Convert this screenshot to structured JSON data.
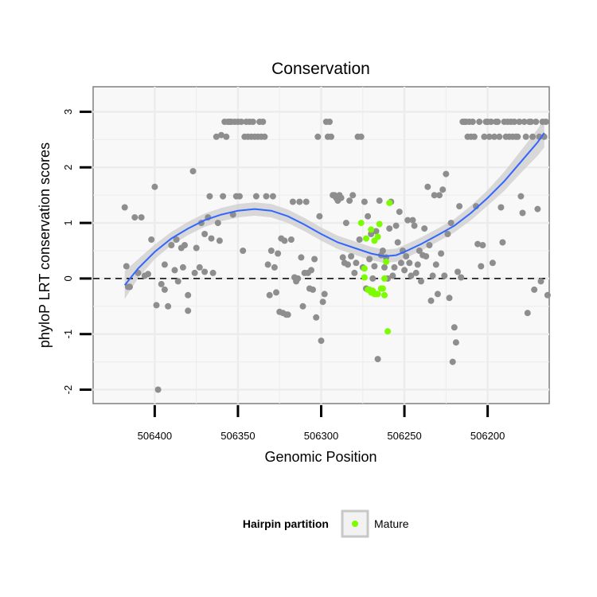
{
  "chart_data": {
    "type": "scatter",
    "title": "Conservation",
    "xlabel": "Genomic Position",
    "ylabel": "phyloP LRT conservation scores",
    "x_reversed": true,
    "xlim": [
      506437,
      506163
    ],
    "ylim": [
      -2.25,
      3.45
    ],
    "x_ticks": [
      506400,
      506350,
      506300,
      506250,
      506200
    ],
    "y_ticks": [
      -2,
      -1,
      0,
      1,
      2,
      3
    ],
    "grid": true,
    "reference_line": {
      "y": 0,
      "style": "dashed"
    },
    "legend": {
      "title": "Hairpin partition",
      "position": "bottom",
      "entries": [
        {
          "label": "Mature",
          "color": "#7cfc00"
        }
      ]
    },
    "colors": {
      "background": "#f8f8f8",
      "grid": "#ececec",
      "point": "#8e8e8e",
      "mature": "#7cfc00",
      "smooth": "#3366ff",
      "band": "#cfcfcf"
    },
    "series": [
      {
        "name": "",
        "color": "#8e8e8e",
        "points": [
          [
            506418,
            1.28
          ],
          [
            506417,
            0.22
          ],
          [
            506416,
            -0.15
          ],
          [
            506415,
            -0.15
          ],
          [
            506412,
            1.1
          ],
          [
            506410,
            0.1
          ],
          [
            506408,
            1.1
          ],
          [
            506406,
            0.05
          ],
          [
            506404,
            0.08
          ],
          [
            506402,
            0.7
          ],
          [
            506400,
            1.65
          ],
          [
            506399,
            -0.48
          ],
          [
            506398,
            -2.0
          ],
          [
            506396,
            -0.1
          ],
          [
            506394,
            0.25
          ],
          [
            506394,
            -0.2
          ],
          [
            506392,
            -0.5
          ],
          [
            506390,
            0.6
          ],
          [
            506388,
            0.15
          ],
          [
            506387,
            0.7
          ],
          [
            506386,
            -0.05
          ],
          [
            506384,
            0.55
          ],
          [
            506383,
            0.2
          ],
          [
            506382,
            0.6
          ],
          [
            506380,
            -0.58
          ],
          [
            506380,
            -0.3
          ],
          [
            506377,
            1.93
          ],
          [
            506376,
            0.1
          ],
          [
            506375,
            0.55
          ],
          [
            506373,
            0.2
          ],
          [
            506372,
            1.0
          ],
          [
            506370,
            0.8
          ],
          [
            506370,
            0.12
          ],
          [
            506368,
            1.1
          ],
          [
            506367,
            1.48
          ],
          [
            506366,
            0.72
          ],
          [
            506365,
            0.1
          ],
          [
            506363,
            2.55
          ],
          [
            506362,
            1.0
          ],
          [
            506361,
            0.68
          ],
          [
            506360,
            2.58
          ],
          [
            506359,
            1.48
          ],
          [
            506358,
            2.82
          ],
          [
            506357,
            2.55
          ],
          [
            506356,
            2.82
          ],
          [
            506355,
            2.82
          ],
          [
            506354,
            2.82
          ],
          [
            506353,
            1.15
          ],
          [
            506352,
            2.82
          ],
          [
            506351,
            1.48
          ],
          [
            506350,
            2.82
          ],
          [
            506349,
            1.48
          ],
          [
            506348,
            2.82
          ],
          [
            506347,
            0.5
          ],
          [
            506346,
            2.55
          ],
          [
            506345,
            2.82
          ],
          [
            506344,
            2.55
          ],
          [
            506343,
            2.82
          ],
          [
            506342,
            2.55
          ],
          [
            506341,
            2.82
          ],
          [
            506340,
            2.55
          ],
          [
            506339,
            1.48
          ],
          [
            506338,
            2.55
          ],
          [
            506337,
            2.82
          ],
          [
            506336,
            2.55
          ],
          [
            506335,
            2.82
          ],
          [
            506334,
            2.55
          ],
          [
            506333,
            1.48
          ],
          [
            506332,
            0.25
          ],
          [
            506331,
            -0.3
          ],
          [
            506330,
            0.5
          ],
          [
            506329,
            1.48
          ],
          [
            506328,
            0.2
          ],
          [
            506327,
            -0.25
          ],
          [
            506326,
            0.45
          ],
          [
            506325,
            -0.6
          ],
          [
            506324,
            0.72
          ],
          [
            506323,
            -0.62
          ],
          [
            506322,
            0.68
          ],
          [
            506321,
            -0.65
          ],
          [
            506320,
            -0.65
          ],
          [
            506318,
            0.7
          ],
          [
            506317,
            1.38
          ],
          [
            506316,
            0.02
          ],
          [
            506315,
            -0.05
          ],
          [
            506314,
            0.0
          ],
          [
            506313,
            1.38
          ],
          [
            506312,
            0.38
          ],
          [
            506311,
            -0.5
          ],
          [
            506310,
            0.1
          ],
          [
            506309,
            1.38
          ],
          [
            506308,
            0.1
          ],
          [
            506307,
            -0.18
          ],
          [
            506306,
            0.15
          ],
          [
            506305,
            -0.2
          ],
          [
            506304,
            0.35
          ],
          [
            506303,
            -0.7
          ],
          [
            506302,
            2.55
          ],
          [
            506301,
            1.12
          ],
          [
            506300,
            -1.12
          ],
          [
            506299,
            -0.42
          ],
          [
            506298,
            -0.28
          ],
          [
            506297,
            2.82
          ],
          [
            506296,
            2.55
          ],
          [
            506295,
            2.82
          ],
          [
            506294,
            2.55
          ],
          [
            506293,
            1.5
          ],
          [
            506292,
            1.5
          ],
          [
            506291,
            1.45
          ],
          [
            506290,
            1.4
          ],
          [
            506289,
            1.5
          ],
          [
            506288,
            1.45
          ],
          [
            506287,
            0.38
          ],
          [
            506286,
            0.28
          ],
          [
            506285,
            1.0
          ],
          [
            506284,
            0.25
          ],
          [
            506283,
            1.4
          ],
          [
            506282,
            0.4
          ],
          [
            506281,
            1.5
          ],
          [
            506280,
            0.1
          ],
          [
            506279,
            0.28
          ],
          [
            506278,
            2.55
          ],
          [
            506277,
            0.7
          ],
          [
            506276,
            2.55
          ],
          [
            506275,
            0.2
          ],
          [
            506274,
            1.38
          ],
          [
            506273,
            -0.18
          ],
          [
            506272,
            1.12
          ],
          [
            506271,
            0.35
          ],
          [
            506270,
            0.8
          ],
          [
            506269,
            0.0
          ],
          [
            506268,
            0.22
          ],
          [
            506267,
            0.85
          ],
          [
            506266,
            -1.45
          ],
          [
            506265,
            1.4
          ],
          [
            506264,
            0.42
          ],
          [
            506263,
            0.5
          ],
          [
            506262,
            0.2
          ],
          [
            506261,
            0.38
          ],
          [
            506260,
            0.0
          ],
          [
            506259,
            0.9
          ],
          [
            506258,
            1.38
          ],
          [
            506257,
            0.05
          ],
          [
            506256,
            0.2
          ],
          [
            506255,
            0.95
          ],
          [
            506254,
            0.65
          ],
          [
            506253,
            1.2
          ],
          [
            506252,
            0.28
          ],
          [
            506251,
            0.5
          ],
          [
            506250,
            0.15
          ],
          [
            506249,
            0.4
          ],
          [
            506248,
            1.05
          ],
          [
            506247,
            0.28
          ],
          [
            506246,
            0.05
          ],
          [
            506245,
            1.05
          ],
          [
            506244,
            0.95
          ],
          [
            506243,
            0.1
          ],
          [
            506242,
            0.25
          ],
          [
            506241,
            0.5
          ],
          [
            506240,
            -0.05
          ],
          [
            506239,
            0.42
          ],
          [
            506238,
            0.9
          ],
          [
            506237,
            0.4
          ],
          [
            506236,
            1.65
          ],
          [
            506235,
            0.6
          ],
          [
            506234,
            -0.4
          ],
          [
            506233,
            0.05
          ],
          [
            506232,
            1.5
          ],
          [
            506231,
            0.25
          ],
          [
            506230,
            -0.28
          ],
          [
            506229,
            1.5
          ],
          [
            506228,
            0.45
          ],
          [
            506227,
            1.6
          ],
          [
            506226,
            0.05
          ],
          [
            506225,
            1.88
          ],
          [
            506224,
            0.8
          ],
          [
            506223,
            -0.35
          ],
          [
            506222,
            1.0
          ],
          [
            506221,
            -1.5
          ],
          [
            506220,
            -0.88
          ],
          [
            506219,
            -1.15
          ],
          [
            506218,
            0.12
          ],
          [
            506217,
            1.3
          ],
          [
            506216,
            0.02
          ],
          [
            506215,
            2.82
          ],
          [
            506214,
            2.82
          ],
          [
            506213,
            2.82
          ],
          [
            506212,
            2.55
          ],
          [
            506211,
            2.82
          ],
          [
            506210,
            2.55
          ],
          [
            506209,
            2.82
          ],
          [
            506208,
            2.55
          ],
          [
            506207,
            1.3
          ],
          [
            506206,
            0.62
          ],
          [
            506205,
            2.82
          ],
          [
            506204,
            0.22
          ],
          [
            506203,
            0.6
          ],
          [
            506202,
            2.55
          ],
          [
            506201,
            2.82
          ],
          [
            506200,
            2.82
          ],
          [
            506199,
            2.55
          ],
          [
            506198,
            2.82
          ],
          [
            506197,
            0.28
          ],
          [
            506196,
            2.55
          ],
          [
            506195,
            2.82
          ],
          [
            506194,
            2.82
          ],
          [
            506193,
            2.55
          ],
          [
            506192,
            1.28
          ],
          [
            506191,
            0.65
          ],
          [
            506190,
            2.82
          ],
          [
            506189,
            2.55
          ],
          [
            506188,
            2.82
          ],
          [
            506187,
            2.55
          ],
          [
            506186,
            2.82
          ],
          [
            506185,
            2.55
          ],
          [
            506184,
            2.82
          ],
          [
            506183,
            2.55
          ],
          [
            506182,
            2.55
          ],
          [
            506181,
            2.82
          ],
          [
            506180,
            1.48
          ],
          [
            506179,
            1.18
          ],
          [
            506178,
            2.82
          ],
          [
            506177,
            2.55
          ],
          [
            506176,
            -0.62
          ],
          [
            506175,
            2.82
          ],
          [
            506174,
            2.82
          ],
          [
            506173,
            2.55
          ],
          [
            506172,
            -0.2
          ],
          [
            506171,
            2.82
          ],
          [
            506170,
            1.25
          ],
          [
            506169,
            2.55
          ],
          [
            506168,
            -0.05
          ],
          [
            506167,
            2.82
          ],
          [
            506166,
            2.55
          ],
          [
            506165,
            2.82
          ],
          [
            506164,
            -0.3
          ]
        ]
      },
      {
        "name": "Mature",
        "color": "#7cfc00",
        "points": [
          [
            506276,
            1.0
          ],
          [
            506274,
            0.02
          ],
          [
            506274,
            0.18
          ],
          [
            506273,
            0.72
          ],
          [
            506272,
            -0.2
          ],
          [
            506271,
            -0.2
          ],
          [
            506270,
            -0.25
          ],
          [
            506270,
            0.88
          ],
          [
            506269,
            -0.22
          ],
          [
            506268,
            0.68
          ],
          [
            506268,
            -0.28
          ],
          [
            506267,
            -0.28
          ],
          [
            506266,
            0.75
          ],
          [
            506266,
            -0.28
          ],
          [
            506265,
            0.98
          ],
          [
            506264,
            -0.18
          ],
          [
            506263,
            -0.18
          ],
          [
            506262,
            0.0
          ],
          [
            506262,
            -0.3
          ],
          [
            506261,
            0.3
          ],
          [
            506260,
            -0.95
          ],
          [
            506259,
            1.36
          ]
        ]
      }
    ],
    "smooth": {
      "x": [
        506418,
        506410,
        506400,
        506390,
        506380,
        506370,
        506360,
        506350,
        506340,
        506330,
        506320,
        506310,
        506300,
        506290,
        506280,
        506270,
        506262,
        506255,
        506250,
        506240,
        506230,
        506220,
        506210,
        506200,
        506190,
        506180,
        506170,
        506166
      ],
      "y": [
        -0.12,
        0.18,
        0.48,
        0.72,
        0.9,
        1.05,
        1.15,
        1.22,
        1.25,
        1.22,
        1.12,
        0.97,
        0.8,
        0.65,
        0.55,
        0.45,
        0.4,
        0.42,
        0.48,
        0.62,
        0.78,
        0.95,
        1.18,
        1.45,
        1.75,
        2.1,
        2.45,
        2.62
      ],
      "band": [
        0.25,
        0.17,
        0.13,
        0.12,
        0.12,
        0.12,
        0.12,
        0.12,
        0.12,
        0.12,
        0.12,
        0.12,
        0.12,
        0.12,
        0.12,
        0.12,
        0.12,
        0.12,
        0.12,
        0.12,
        0.12,
        0.12,
        0.13,
        0.14,
        0.17,
        0.2,
        0.24,
        0.26
      ]
    }
  }
}
